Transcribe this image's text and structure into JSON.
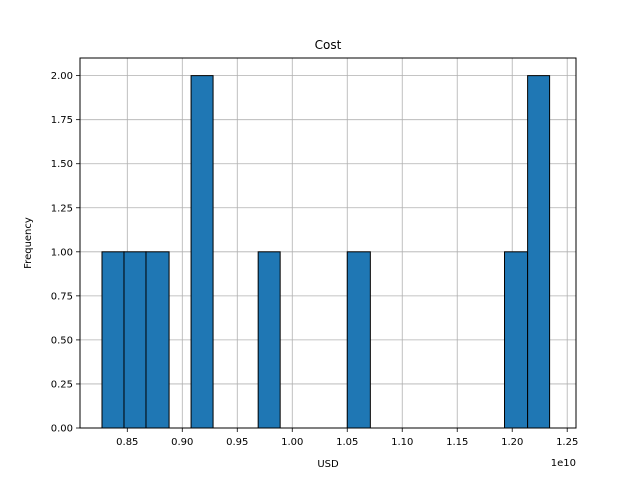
{
  "chart_data": {
    "type": "bar",
    "title": "Cost",
    "xlabel": "USD",
    "ylabel": "Frequency",
    "x_offset_label": "1e10",
    "xlim": [
      0.807,
      1.258
    ],
    "ylim": [
      0,
      2.1
    ],
    "grid": true,
    "bar_color": "#1f77b4",
    "edge_color": "#000000",
    "bins": [
      {
        "start": 0.827,
        "end": 0.847,
        "count": 1
      },
      {
        "start": 0.847,
        "end": 0.867,
        "count": 1
      },
      {
        "start": 0.867,
        "end": 0.888,
        "count": 1
      },
      {
        "start": 0.908,
        "end": 0.928,
        "count": 2
      },
      {
        "start": 0.969,
        "end": 0.989,
        "count": 1
      },
      {
        "start": 1.05,
        "end": 1.071,
        "count": 1
      },
      {
        "start": 1.193,
        "end": 1.214,
        "count": 1
      },
      {
        "start": 1.214,
        "end": 1.234,
        "count": 2
      }
    ],
    "x_ticks": [
      {
        "value": 0.85,
        "label": "0.85"
      },
      {
        "value": 0.9,
        "label": "0.90"
      },
      {
        "value": 0.95,
        "label": "0.95"
      },
      {
        "value": 1.0,
        "label": "1.00"
      },
      {
        "value": 1.05,
        "label": "1.05"
      },
      {
        "value": 1.1,
        "label": "1.10"
      },
      {
        "value": 1.15,
        "label": "1.15"
      },
      {
        "value": 1.2,
        "label": "1.20"
      },
      {
        "value": 1.25,
        "label": "1.25"
      }
    ],
    "y_ticks": [
      {
        "value": 0.0,
        "label": "0.00"
      },
      {
        "value": 0.25,
        "label": "0.25"
      },
      {
        "value": 0.5,
        "label": "0.50"
      },
      {
        "value": 0.75,
        "label": "0.75"
      },
      {
        "value": 1.0,
        "label": "1.00"
      },
      {
        "value": 1.25,
        "label": "1.25"
      },
      {
        "value": 1.5,
        "label": "1.50"
      },
      {
        "value": 1.75,
        "label": "1.75"
      },
      {
        "value": 2.0,
        "label": "2.00"
      }
    ]
  }
}
